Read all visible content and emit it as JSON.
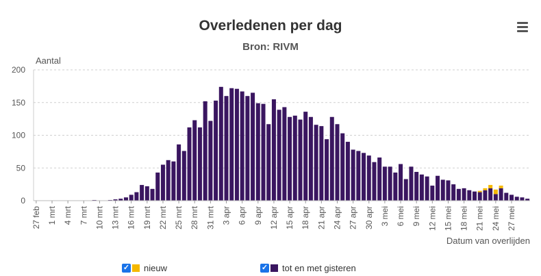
{
  "chart_data": {
    "type": "bar",
    "stacked": true,
    "title": "Overledenen per dag",
    "subtitle": "Bron: RIVM",
    "ylabel": "Aantal",
    "xlabel": "Datum van overlijden",
    "ylim": [
      0,
      200
    ],
    "yticks": [
      0,
      50,
      100,
      150,
      200
    ],
    "grid": true,
    "legend_placement": "bottom",
    "start_date": "27 feb",
    "x_tick_labels": [
      "27 feb",
      "1 mrt",
      "4 mrt",
      "7 mrt",
      "10 mrt",
      "13 mrt",
      "16 mrt",
      "19 mrt",
      "22 mrt",
      "25 mrt",
      "28 mrt",
      "31 mrt",
      "3 apr",
      "6 apr",
      "9 apr",
      "12 apr",
      "15 apr",
      "18 apr",
      "21 apr",
      "24 apr",
      "27 apr",
      "30 apr",
      "3 mei",
      "6 mei",
      "9 mei",
      "12 mei",
      "15 mei",
      "18 mei",
      "21 mei",
      "24 mei",
      "27 mei"
    ],
    "series": [
      {
        "name": "nieuw",
        "color": "#f5b800",
        "values": [
          0,
          0,
          0,
          0,
          0,
          0,
          0,
          0,
          0,
          0,
          0,
          0,
          0,
          0,
          0,
          0,
          0,
          0,
          0,
          0,
          0,
          0,
          0,
          0,
          0,
          0,
          0,
          0,
          0,
          0,
          0,
          0,
          0,
          0,
          0,
          0,
          0,
          0,
          0,
          0,
          0,
          0,
          0,
          0,
          0,
          0,
          0,
          0,
          0,
          0,
          0,
          0,
          0,
          0,
          0,
          0,
          0,
          0,
          0,
          0,
          0,
          0,
          0,
          0,
          0,
          0,
          0,
          0,
          0,
          0,
          0,
          0,
          0,
          0,
          0,
          0,
          0,
          0,
          0,
          0,
          0,
          0,
          0,
          0,
          2,
          3,
          5,
          7,
          4
        ]
      },
      {
        "name": "tot en met gisteren",
        "color": "#3a1660",
        "values": [
          0,
          0,
          0,
          0,
          0,
          0,
          0,
          0,
          0,
          0,
          0,
          1,
          0,
          0,
          1,
          2,
          3,
          5,
          9,
          13,
          24,
          22,
          18,
          43,
          55,
          62,
          60,
          86,
          76,
          112,
          123,
          112,
          152,
          122,
          153,
          174,
          160,
          172,
          171,
          167,
          160,
          165,
          149,
          148,
          117,
          155,
          139,
          143,
          128,
          130,
          124,
          136,
          128,
          116,
          114,
          94,
          128,
          117,
          103,
          90,
          78,
          76,
          73,
          69,
          59,
          66,
          52,
          52,
          43,
          56,
          33,
          52,
          44,
          40,
          37,
          23,
          38,
          32,
          31,
          25,
          18,
          19,
          16,
          14,
          13,
          16,
          19,
          10,
          19,
          12,
          9,
          6,
          5,
          3
        ]
      }
    ]
  },
  "legend": {
    "items": [
      {
        "label": "nieuw",
        "color": "#f5b800"
      },
      {
        "label": "tot en met gisteren",
        "color": "#3a1660"
      }
    ]
  },
  "menu": {
    "icon": "hamburger-menu-icon"
  }
}
